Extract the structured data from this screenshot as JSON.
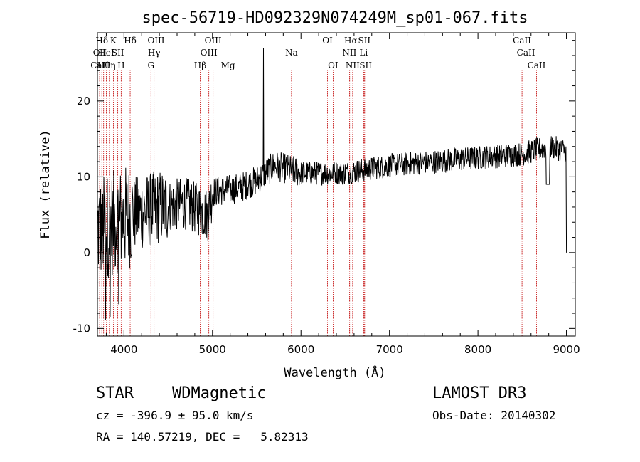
{
  "chart_data": {
    "type": "line",
    "title": "spec-56719-HD092329N074249M_sp01-067.fits",
    "xlabel": "Wavelength (Å)",
    "ylabel": "Flux (relative)",
    "xlim": [
      3700,
      9100
    ],
    "ylim": [
      -11,
      29
    ],
    "xticks": [
      4000,
      5000,
      6000,
      7000,
      8000,
      9000
    ],
    "yticks": [
      -10,
      0,
      10,
      20
    ],
    "spectrum_anchors": [
      {
        "x": 3700,
        "y": 3
      },
      {
        "x": 3900,
        "y": 4
      },
      {
        "x": 4100,
        "y": 5
      },
      {
        "x": 4400,
        "y": 6
      },
      {
        "x": 4700,
        "y": 6.5
      },
      {
        "x": 4950,
        "y": 5
      },
      {
        "x": 5000,
        "y": 8
      },
      {
        "x": 5300,
        "y": 8.5
      },
      {
        "x": 5500,
        "y": 9.5
      },
      {
        "x": 5700,
        "y": 11.5
      },
      {
        "x": 6000,
        "y": 10.5
      },
      {
        "x": 6500,
        "y": 10.5
      },
      {
        "x": 7000,
        "y": 11.5
      },
      {
        "x": 7500,
        "y": 12
      },
      {
        "x": 8000,
        "y": 12.5
      },
      {
        "x": 8500,
        "y": 13
      },
      {
        "x": 8800,
        "y": 14
      },
      {
        "x": 8980,
        "y": 13.5
      }
    ],
    "spectrum_features": [
      {
        "x": 5577,
        "y": 27,
        "note": "sky emission spike"
      },
      {
        "x": 8790,
        "y": 9
      },
      {
        "x": 9000,
        "y": 0
      }
    ],
    "line_markers": [
      {
        "label": "Hδ",
        "x": 3750,
        "row": 0
      },
      {
        "label": "OII",
        "x": 3727,
        "row": 1
      },
      {
        "label": "CaII",
        "x": 3725,
        "row": 2
      },
      {
        "label": "Hθ",
        "x": 3770,
        "row": 2
      },
      {
        "label": "HeI",
        "x": 3800,
        "row": 1
      },
      {
        "label": "Hη",
        "x": 3835,
        "row": 2
      },
      {
        "label": "K",
        "x": 3880,
        "row": 0
      },
      {
        "label": "SII",
        "x": 3930,
        "row": 1
      },
      {
        "label": "H",
        "x": 3968,
        "row": 2
      },
      {
        "label": "Hδ",
        "x": 4070,
        "row": 0
      },
      {
        "label": "OIII",
        "x": 4363,
        "row": 0
      },
      {
        "label": "Hγ",
        "x": 4340,
        "row": 1
      },
      {
        "label": "G",
        "x": 4305,
        "row": 2
      },
      {
        "label": "Hβ",
        "x": 4861,
        "row": 2
      },
      {
        "label": "OIII",
        "x": 5007,
        "row": 0
      },
      {
        "label": "OIII",
        "x": 4959,
        "row": 1
      },
      {
        "label": "Mg",
        "x": 5175,
        "row": 2
      },
      {
        "label": "Na",
        "x": 5893,
        "row": 1
      },
      {
        "label": "OI",
        "x": 6300,
        "row": 0
      },
      {
        "label": "OI",
        "x": 6363,
        "row": 2
      },
      {
        "label": "Hα",
        "x": 6563,
        "row": 0
      },
      {
        "label": "SII",
        "x": 6716,
        "row": 0
      },
      {
        "label": "NII",
        "x": 6548,
        "row": 1
      },
      {
        "label": "Li",
        "x": 6708,
        "row": 1
      },
      {
        "label": "NII",
        "x": 6584,
        "row": 2
      },
      {
        "label": "SII",
        "x": 6731,
        "row": 2
      },
      {
        "label": "CaII",
        "x": 8498,
        "row": 0
      },
      {
        "label": "CaII",
        "x": 8542,
        "row": 1
      },
      {
        "label": "CaII",
        "x": 8662,
        "row": 2
      }
    ]
  },
  "info": {
    "class_label": "STAR",
    "subclass": "WDMagnetic",
    "survey": "LAMOST DR3",
    "cz": "cz = -396.9 ± 95.0 km/s",
    "obs_date": "Obs-Date: 20140302",
    "coords": "RA = 140.57219, DEC =   5.82313"
  }
}
